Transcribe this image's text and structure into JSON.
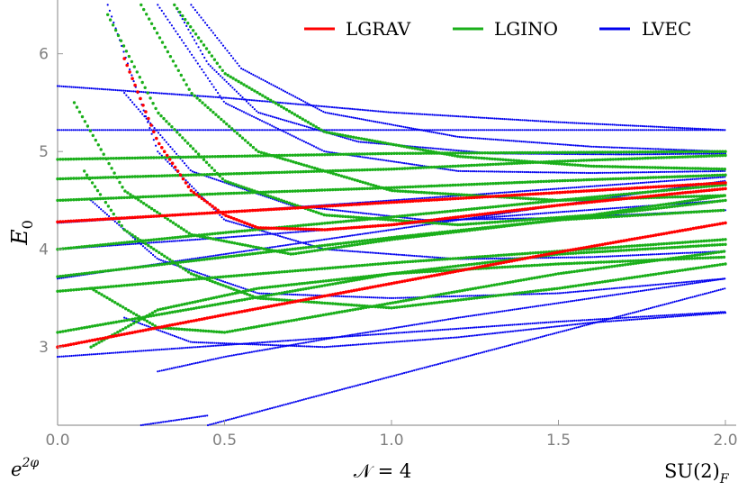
{
  "chart_data": {
    "type": "scatter",
    "title": "",
    "xlabel": "",
    "ylabel": "E_0",
    "ylabel_main": "E",
    "ylabel_sub": "0",
    "xlim": [
      0,
      2.0
    ],
    "ylim": [
      2.2,
      6.55
    ],
    "xticks": [
      "0.0",
      "0.5",
      "1.0",
      "1.5",
      "2.0"
    ],
    "xtick_values": [
      0,
      0.5,
      1.0,
      1.5,
      2.0
    ],
    "yticks": [
      "3",
      "4",
      "5",
      "6"
    ],
    "ytick_values": [
      3,
      4,
      5,
      6
    ],
    "grid": false,
    "legend_position": "top-right",
    "bottom_labels": {
      "left": "e",
      "left_sup": "2φ",
      "center": "𝒩 = 4",
      "right": "SU(2)",
      "right_sub": "F"
    },
    "series": [
      {
        "name": "LGRAV",
        "color": "#ff0000",
        "curves": [
          {
            "x": [
              0,
              0.5,
              1.0,
              1.5,
              2.0
            ],
            "y": [
              3.0,
              3.33,
              3.65,
              3.97,
              4.27
            ]
          },
          {
            "x": [
              0,
              0.5,
              1.0,
              1.5,
              2.0
            ],
            "y": [
              4.28,
              4.38,
              4.48,
              4.58,
              4.68
            ]
          },
          {
            "x": [
              0.2,
              0.3,
              0.4,
              0.5,
              0.6,
              0.8,
              1.0,
              1.5,
              2.0
            ],
            "y": [
              5.95,
              5.1,
              4.6,
              4.35,
              4.22,
              4.2,
              4.25,
              4.45,
              4.62
            ]
          }
        ]
      },
      {
        "name": "LGINO",
        "color": "#1aaf1a",
        "curves": [
          {
            "x": [
              0,
              0.5,
              1.0,
              1.5,
              2.0
            ],
            "y": [
              3.15,
              3.45,
              3.75,
              3.95,
              4.05
            ]
          },
          {
            "x": [
              0,
              0.5,
              1.0,
              1.5,
              2.0
            ],
            "y": [
              3.57,
              3.72,
              3.86,
              3.98,
              4.1
            ]
          },
          {
            "x": [
              0,
              0.5,
              1.0,
              1.5,
              2.0
            ],
            "y": [
              3.72,
              3.92,
              4.12,
              4.3,
              4.5
            ]
          },
          {
            "x": [
              0,
              0.5,
              1.0,
              1.5,
              2.0
            ],
            "y": [
              4.0,
              4.17,
              4.33,
              4.5,
              4.66
            ]
          },
          {
            "x": [
              0,
              0.5,
              1.0,
              1.5,
              2.0
            ],
            "y": [
              4.5,
              4.57,
              4.63,
              4.7,
              4.76
            ]
          },
          {
            "x": [
              0,
              0.5,
              1.0,
              1.5,
              2.0
            ],
            "y": [
              4.92,
              4.95,
              4.98,
              4.99,
              5.0
            ]
          },
          {
            "x": [
              0.1,
              0.3,
              0.6,
              1.0,
              1.5,
              2.0
            ],
            "y": [
              3.0,
              3.38,
              3.6,
              3.75,
              3.85,
              3.92
            ]
          },
          {
            "x": [
              0.08,
              0.2,
              0.4,
              0.6,
              1.0,
              1.5,
              2.0
            ],
            "y": [
              4.8,
              4.2,
              3.75,
              3.5,
              3.4,
              3.6,
              3.85
            ]
          },
          {
            "x": [
              0.15,
              0.3,
              0.5,
              0.8,
              1.2,
              1.6,
              2.0
            ],
            "y": [
              6.4,
              5.4,
              4.7,
              4.35,
              4.25,
              4.35,
              4.55
            ]
          },
          {
            "x": [
              0.25,
              0.4,
              0.6,
              1.0,
              1.5,
              2.0
            ],
            "y": [
              6.5,
              5.6,
              5.0,
              4.6,
              4.5,
              4.55
            ]
          },
          {
            "x": [
              0.35,
              0.5,
              0.8,
              1.2,
              1.6,
              2.0
            ],
            "y": [
              6.5,
              5.8,
              5.2,
              4.95,
              4.85,
              4.82
            ]
          },
          {
            "x": [
              0.05,
              0.2,
              0.4,
              0.7,
              1.0,
              1.5,
              2.0
            ],
            "y": [
              5.5,
              4.6,
              4.15,
              3.95,
              4.1,
              4.3,
              4.4
            ]
          },
          {
            "x": [
              0.0,
              0.3,
              0.6,
              1.0,
              1.5,
              2.0
            ],
            "y": [
              4.72,
              4.75,
              4.78,
              4.82,
              4.9,
              4.96
            ]
          },
          {
            "x": [
              0.1,
              0.3,
              0.5,
              1.0,
              1.5,
              2.0
            ],
            "y": [
              3.6,
              3.2,
              3.15,
              3.45,
              3.75,
              3.98
            ]
          }
        ]
      },
      {
        "name": "LVEC",
        "color": "#0000ee",
        "curves": [
          {
            "x": [
              0,
              0.5,
              1.0,
              1.5,
              2.0
            ],
            "y": [
              2.9,
              3.02,
              3.14,
              3.26,
              3.36
            ]
          },
          {
            "x": [
              0.45,
              0.8,
              1.2,
              1.6,
              2.0
            ],
            "y": [
              2.2,
              2.52,
              2.88,
              3.24,
              3.6
            ]
          },
          {
            "x": [
              0.25,
              0.35,
              0.45
            ],
            "y": [
              2.2,
              2.25,
              2.3
            ]
          },
          {
            "x": [
              0.3,
              0.5,
              0.8,
              1.2,
              1.6,
              2.0
            ],
            "y": [
              2.75,
              2.9,
              3.08,
              3.3,
              3.5,
              3.7
            ]
          },
          {
            "x": [
              0,
              0.5,
              1.0,
              1.5,
              2.0
            ],
            "y": [
              5.22,
              5.22,
              5.22,
              5.22,
              5.22
            ]
          },
          {
            "x": [
              0,
              0.5,
              1.0,
              1.5,
              2.0
            ],
            "y": [
              5.67,
              5.55,
              5.4,
              5.3,
              5.22
            ]
          },
          {
            "x": [
              0,
              0.5,
              1.0,
              1.5,
              2.0
            ],
            "y": [
              3.7,
              3.95,
              4.2,
              4.45,
              4.7
            ]
          },
          {
            "x": [
              0,
              0.5,
              1.0,
              1.5,
              2.0
            ],
            "y": [
              4.27,
              4.38,
              4.5,
              4.62,
              4.74
            ]
          },
          {
            "x": [
              0,
              0.5,
              1.0,
              1.5,
              2.0
            ],
            "y": [
              4.0,
              4.12,
              4.25,
              4.38,
              4.5
            ]
          },
          {
            "x": [
              0.35,
              0.45,
              0.6,
              0.9,
              1.3,
              1.7,
              2.0
            ],
            "y": [
              6.5,
              5.9,
              5.4,
              5.1,
              4.98,
              4.97,
              4.98
            ]
          },
          {
            "x": [
              0.4,
              0.55,
              0.8,
              1.2,
              1.6,
              2.0
            ],
            "y": [
              6.5,
              5.85,
              5.4,
              5.15,
              5.05,
              5.0
            ]
          },
          {
            "x": [
              0.3,
              0.5,
              0.8,
              1.2,
              1.6,
              2.0
            ],
            "y": [
              6.5,
              5.5,
              5.0,
              4.8,
              4.78,
              4.8
            ]
          },
          {
            "x": [
              0.2,
              0.4,
              0.7,
              1.1,
              1.5,
              2.0
            ],
            "y": [
              5.6,
              4.8,
              4.45,
              4.3,
              4.32,
              4.4
            ]
          },
          {
            "x": [
              0.1,
              0.3,
              0.6,
              1.0,
              1.5,
              2.0
            ],
            "y": [
              4.5,
              3.9,
              3.55,
              3.5,
              3.55,
              3.7
            ]
          },
          {
            "x": [
              0.2,
              0.4,
              0.8,
              1.2,
              1.6,
              2.0
            ],
            "y": [
              3.3,
              3.05,
              3.0,
              3.1,
              3.25,
              3.35
            ]
          },
          {
            "x": [
              0.15,
              0.3,
              0.5,
              0.8,
              1.2,
              1.6,
              2.0
            ],
            "y": [
              6.5,
              5.0,
              4.3,
              4.0,
              3.9,
              3.92,
              3.98
            ]
          }
        ]
      }
    ]
  }
}
